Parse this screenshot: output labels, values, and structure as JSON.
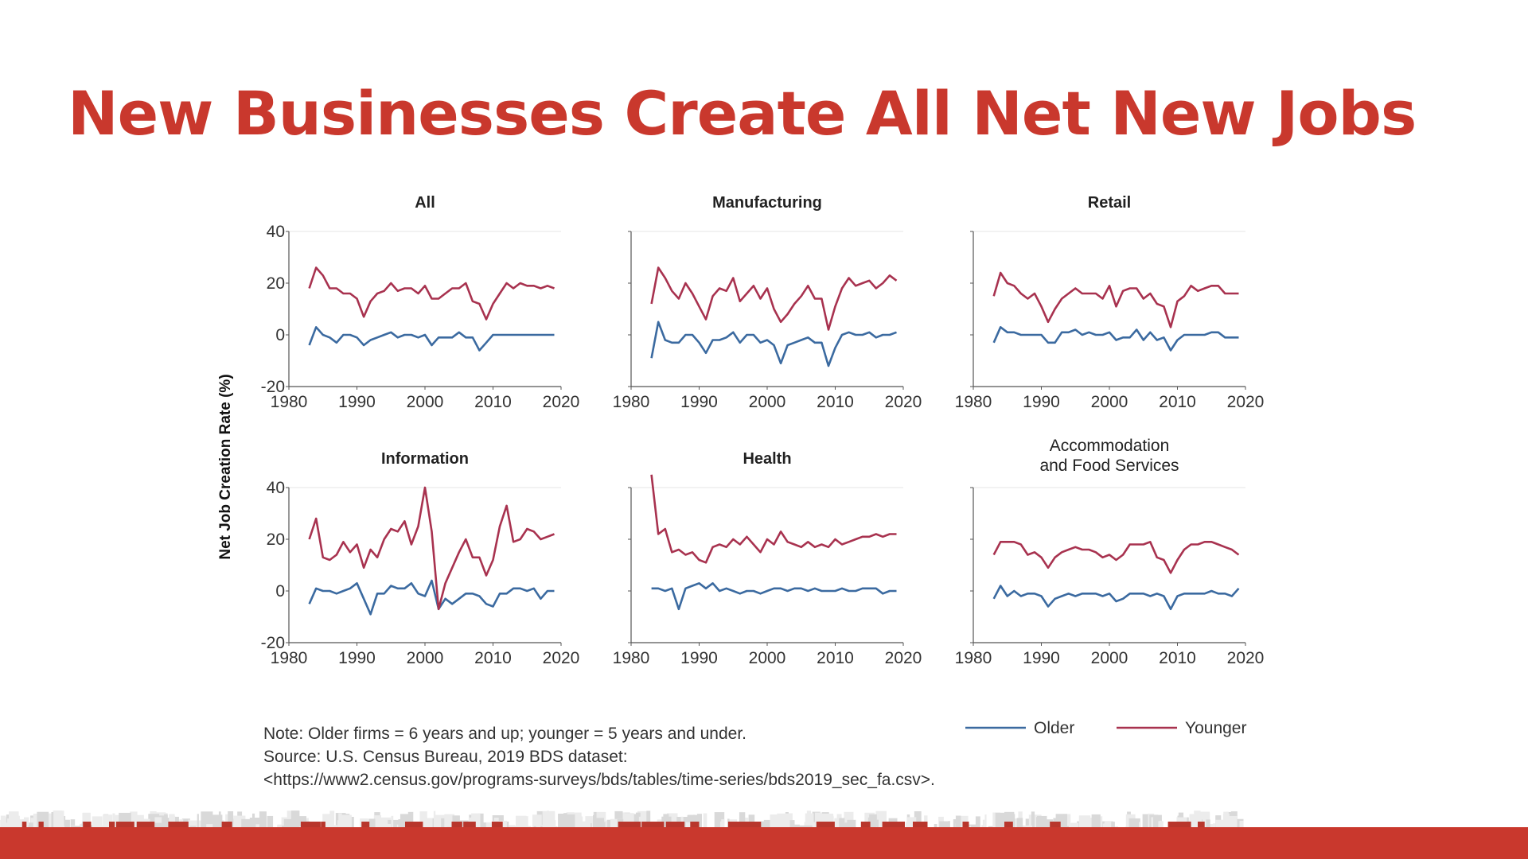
{
  "slide": {
    "title": "New Businesses Create All Net New Jobs",
    "accent_color": "#c9382d"
  },
  "notes": {
    "note": "Note: Older firms = 6 years and up; younger = 5 years and under.",
    "source": "Source: U.S. Census Bureau, 2019 BDS dataset:",
    "url": "<https://www2.census.gov/programs-surveys/bds/tables/time-series/bds2019_sec_fa.csv>."
  },
  "chart_data": {
    "type": "line",
    "ylabel": "Net Job Creation Rate (%)",
    "xlim": [
      1980,
      2020
    ],
    "ylim": [
      -20,
      40
    ],
    "x_ticks": [
      1980,
      1990,
      2000,
      2010,
      2020
    ],
    "y_ticks": [
      -20,
      0,
      20,
      40
    ],
    "x": [
      1983,
      1984,
      1985,
      1986,
      1987,
      1988,
      1989,
      1990,
      1991,
      1992,
      1993,
      1994,
      1995,
      1996,
      1997,
      1998,
      1999,
      2000,
      2001,
      2002,
      2003,
      2004,
      2005,
      2006,
      2007,
      2008,
      2009,
      2010,
      2011,
      2012,
      2013,
      2014,
      2015,
      2016,
      2017,
      2018,
      2019
    ],
    "legend": [
      {
        "name": "Older",
        "color": "#3b6aa0"
      },
      {
        "name": "Younger",
        "color": "#a8324f"
      }
    ],
    "panels": [
      {
        "title": "All",
        "older": [
          -4,
          3,
          0,
          -1,
          -3,
          0,
          0,
          -1,
          -4,
          -2,
          -1,
          0,
          1,
          -1,
          0,
          0,
          -1,
          0,
          -4,
          -1,
          -1,
          -1,
          1,
          -1,
          -1,
          -6,
          -3,
          0,
          0,
          0,
          0,
          0,
          0,
          0,
          0,
          0,
          0
        ],
        "younger": [
          18,
          26,
          23,
          18,
          18,
          16,
          16,
          14,
          7,
          13,
          16,
          17,
          20,
          17,
          18,
          18,
          16,
          19,
          14,
          14,
          16,
          18,
          18,
          20,
          13,
          12,
          6,
          12,
          16,
          20,
          18,
          20,
          19,
          19,
          18,
          19,
          18
        ]
      },
      {
        "title": "Manufacturing",
        "older": [
          -9,
          5,
          -2,
          -3,
          -3,
          0,
          0,
          -3,
          -7,
          -2,
          -2,
          -1,
          1,
          -3,
          0,
          0,
          -3,
          -2,
          -4,
          -11,
          -4,
          -3,
          -2,
          -1,
          -3,
          -3,
          -12,
          -5,
          0,
          1,
          0,
          0,
          1,
          -1,
          0,
          0,
          1
        ],
        "younger": [
          12,
          26,
          22,
          17,
          14,
          20,
          16,
          11,
          6,
          15,
          18,
          17,
          22,
          13,
          16,
          19,
          14,
          18,
          10,
          5,
          8,
          12,
          15,
          19,
          14,
          14,
          2,
          11,
          18,
          22,
          19,
          20,
          21,
          18,
          20,
          23,
          21
        ]
      },
      {
        "title": "Retail",
        "older": [
          -3,
          3,
          1,
          1,
          0,
          0,
          0,
          0,
          -3,
          -3,
          1,
          1,
          2,
          0,
          1,
          0,
          0,
          1,
          -2,
          -1,
          -1,
          2,
          -2,
          1,
          -2,
          -1,
          -6,
          -2,
          0,
          0,
          0,
          0,
          1,
          1,
          -1,
          -1,
          -1
        ],
        "younger": [
          15,
          24,
          20,
          19,
          16,
          14,
          16,
          11,
          5,
          10,
          14,
          16,
          18,
          16,
          16,
          16,
          14,
          19,
          11,
          17,
          18,
          18,
          14,
          16,
          12,
          11,
          3,
          13,
          15,
          19,
          17,
          18,
          19,
          19,
          16,
          16,
          16
        ]
      },
      {
        "title": "Information",
        "older": [
          -5,
          1,
          0,
          0,
          -1,
          0,
          1,
          3,
          -3,
          -9,
          -1,
          -1,
          2,
          1,
          1,
          3,
          -1,
          -2,
          4,
          -7,
          -3,
          -5,
          -3,
          -1,
          -1,
          -2,
          -5,
          -6,
          -1,
          -1,
          1,
          1,
          0,
          1,
          -3,
          0,
          0
        ],
        "younger": [
          20,
          28,
          13,
          12,
          14,
          19,
          15,
          18,
          9,
          16,
          13,
          20,
          24,
          23,
          27,
          18,
          25,
          40,
          23,
          -7,
          3,
          9,
          15,
          20,
          13,
          13,
          6,
          12,
          25,
          33,
          19,
          20,
          24,
          23,
          20,
          21,
          22
        ]
      },
      {
        "title": "Health",
        "older": [
          1,
          1,
          0,
          1,
          -7,
          1,
          2,
          3,
          1,
          3,
          0,
          1,
          0,
          -1,
          0,
          0,
          -1,
          0,
          1,
          1,
          0,
          1,
          1,
          0,
          1,
          0,
          0,
          0,
          1,
          0,
          0,
          1,
          1,
          1,
          -1,
          0,
          0
        ],
        "younger": [
          45,
          22,
          24,
          15,
          16,
          14,
          15,
          12,
          11,
          17,
          18,
          17,
          20,
          18,
          21,
          18,
          15,
          20,
          18,
          23,
          19,
          18,
          17,
          19,
          17,
          18,
          17,
          20,
          18,
          19,
          20,
          21,
          21,
          22,
          21,
          22,
          22
        ]
      },
      {
        "title": "Accommodation\nand Food Services",
        "older": [
          -3,
          2,
          -2,
          0,
          -2,
          -1,
          -1,
          -2,
          -6,
          -3,
          -2,
          -1,
          -2,
          -1,
          -1,
          -1,
          -2,
          -1,
          -4,
          -3,
          -1,
          -1,
          -1,
          -2,
          -1,
          -2,
          -7,
          -2,
          -1,
          -1,
          -1,
          -1,
          0,
          -1,
          -1,
          -2,
          1
        ],
        "younger": [
          14,
          19,
          19,
          19,
          18,
          14,
          15,
          13,
          9,
          13,
          15,
          16,
          17,
          16,
          16,
          15,
          13,
          14,
          12,
          14,
          18,
          18,
          18,
          19,
          13,
          12,
          7,
          12,
          16,
          18,
          18,
          19,
          19,
          18,
          17,
          16,
          14
        ]
      }
    ]
  }
}
